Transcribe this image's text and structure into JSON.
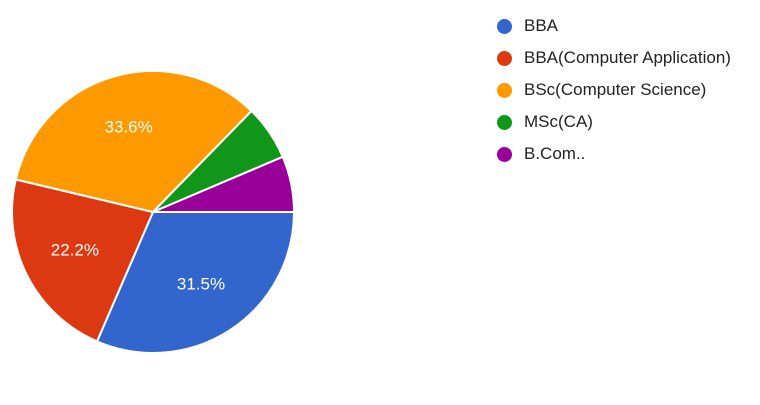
{
  "chart_data": {
    "type": "pie",
    "categories": [
      "BBA",
      "BBA(Computer Application)",
      "BSc(Computer Science)",
      "MSc(CA)",
      "B.Com.."
    ],
    "values": [
      31.5,
      22.2,
      33.6,
      6.3,
      6.4
    ],
    "data_labels": [
      "31.5%",
      "22.2%",
      "33.6%",
      "",
      ""
    ],
    "colors": [
      "#3366cc",
      "#dc3912",
      "#ff9900",
      "#109618",
      "#990099"
    ],
    "legend_position": "right"
  }
}
